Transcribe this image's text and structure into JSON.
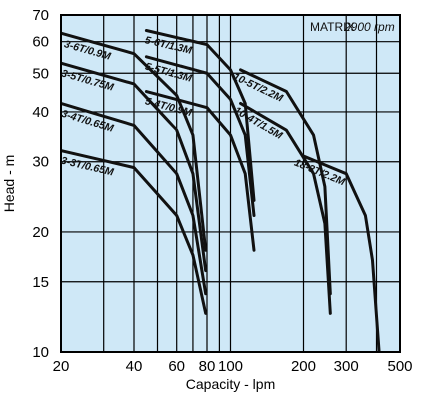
{
  "chart_data": {
    "type": "line",
    "x_scale": "log",
    "y_scale": "log",
    "xlim": [
      20,
      500
    ],
    "ylim": [
      10,
      70
    ],
    "x_ticks": [
      20,
      40,
      60,
      80,
      100,
      200,
      300,
      500
    ],
    "y_ticks": [
      10,
      15,
      20,
      30,
      40,
      50,
      60,
      70
    ],
    "xlabel": "Capacity - lpm",
    "ylabel": "Head - m",
    "grid": true,
    "header": {
      "model": "MATRIX",
      "speed": "2900 rpm"
    },
    "colors": {
      "plot_bg": "#cfe8f7",
      "grid": "#000000",
      "curve": "#111111"
    },
    "series": [
      {
        "name": "3-3T/0.65M",
        "x": [
          20,
          40,
          60,
          70,
          79
        ],
        "y": [
          32,
          29,
          22,
          17.5,
          12.5
        ]
      },
      {
        "name": "3-4T/0.65M",
        "x": [
          20,
          40,
          60,
          70,
          79
        ],
        "y": [
          42,
          37,
          28,
          22,
          14
        ]
      },
      {
        "name": "3-5T/0.75M",
        "x": [
          20,
          40,
          60,
          70,
          79
        ],
        "y": [
          53,
          47,
          36,
          28,
          16
        ]
      },
      {
        "name": "3-6T/0.9M",
        "x": [
          20,
          40,
          60,
          70,
          79
        ],
        "y": [
          63,
          56,
          44,
          35,
          18
        ]
      },
      {
        "name": "5-4T/0.9M",
        "x": [
          45,
          80,
          100,
          115,
          125
        ],
        "y": [
          45,
          41,
          35,
          28,
          18
        ]
      },
      {
        "name": "5-5T/1.3M",
        "x": [
          45,
          80,
          100,
          115,
          125
        ],
        "y": [
          55,
          50,
          43,
          35,
          22
        ]
      },
      {
        "name": "5-6T/1.3M",
        "x": [
          45,
          80,
          100,
          115,
          125
        ],
        "y": [
          64,
          59,
          51,
          42,
          24
        ]
      },
      {
        "name": "10-4T/1.5M",
        "x": [
          110,
          170,
          220,
          245,
          258
        ],
        "y": [
          42,
          36,
          28,
          21,
          12.5
        ]
      },
      {
        "name": "10-5T/2.2M",
        "x": [
          110,
          170,
          220,
          245,
          258
        ],
        "y": [
          51,
          45,
          35,
          26,
          14
        ]
      },
      {
        "name": "18-3T/2.2M",
        "x": [
          200,
          300,
          360,
          385,
          410
        ],
        "y": [
          31,
          28,
          22,
          17,
          10
        ]
      }
    ]
  }
}
